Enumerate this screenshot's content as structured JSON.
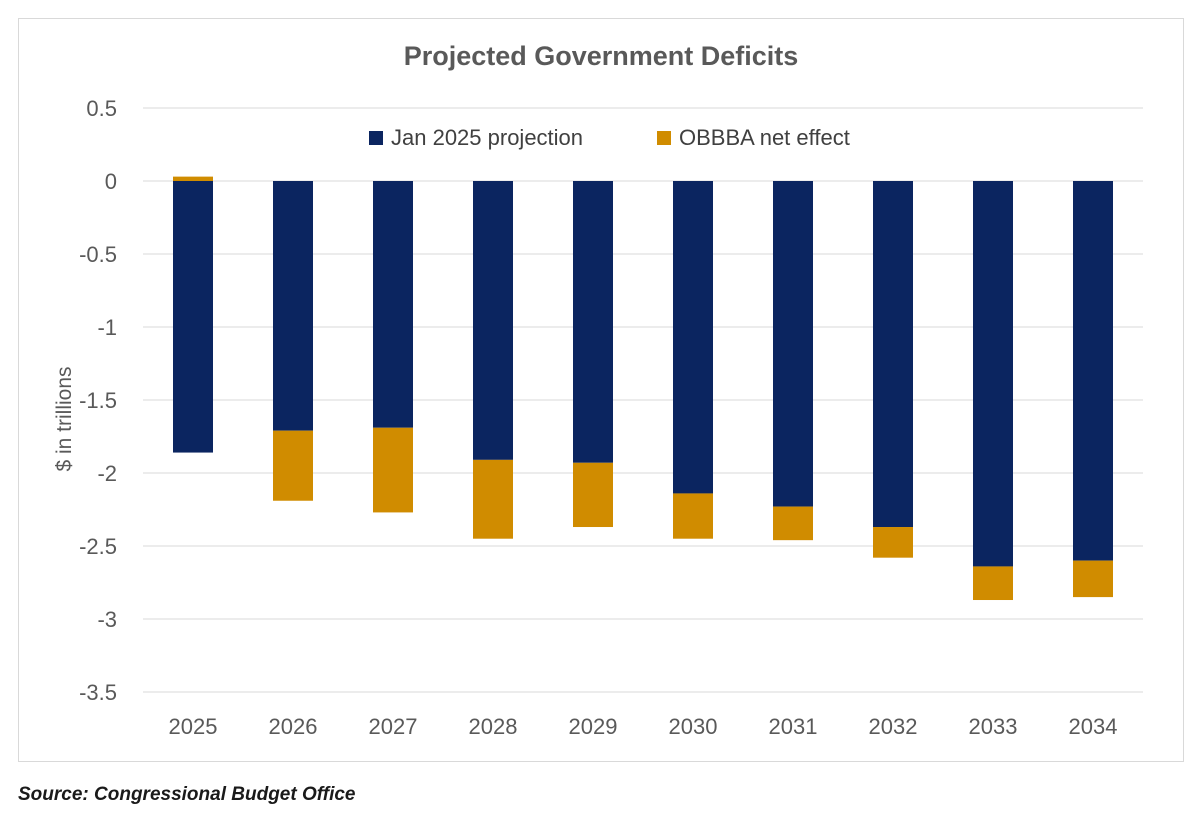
{
  "chart_data": {
    "type": "bar",
    "stacked": true,
    "title": "Projected Government Deficits",
    "ylabel": "$ in trillions",
    "xlabel": "",
    "categories": [
      "2025",
      "2026",
      "2027",
      "2028",
      "2029",
      "2030",
      "2031",
      "2032",
      "2033",
      "2034"
    ],
    "series": [
      {
        "name": "Jan 2025 projection",
        "color": "#0b2560",
        "values": [
          -1.86,
          -1.71,
          -1.69,
          -1.91,
          -1.93,
          -2.14,
          -2.23,
          -2.37,
          -2.64,
          -2.6
        ]
      },
      {
        "name": "OBBBA net effect",
        "color": "#d08c00",
        "values": [
          0.03,
          -0.48,
          -0.58,
          -0.54,
          -0.44,
          -0.31,
          -0.23,
          -0.21,
          -0.23,
          -0.25
        ]
      }
    ],
    "ylim": [
      -3.5,
      0.5
    ],
    "yticks": [
      0.5,
      0,
      -0.5,
      -1,
      -1.5,
      -2,
      -2.5,
      -3,
      -3.5
    ],
    "ytick_labels": [
      "0.5",
      "0",
      "-0.5",
      "-1",
      "-1.5",
      "-2",
      "-2.5",
      "-3",
      "-3.5"
    ],
    "grid": true,
    "legend_position": "top-center"
  },
  "source": "Source: Congressional Budget Office"
}
